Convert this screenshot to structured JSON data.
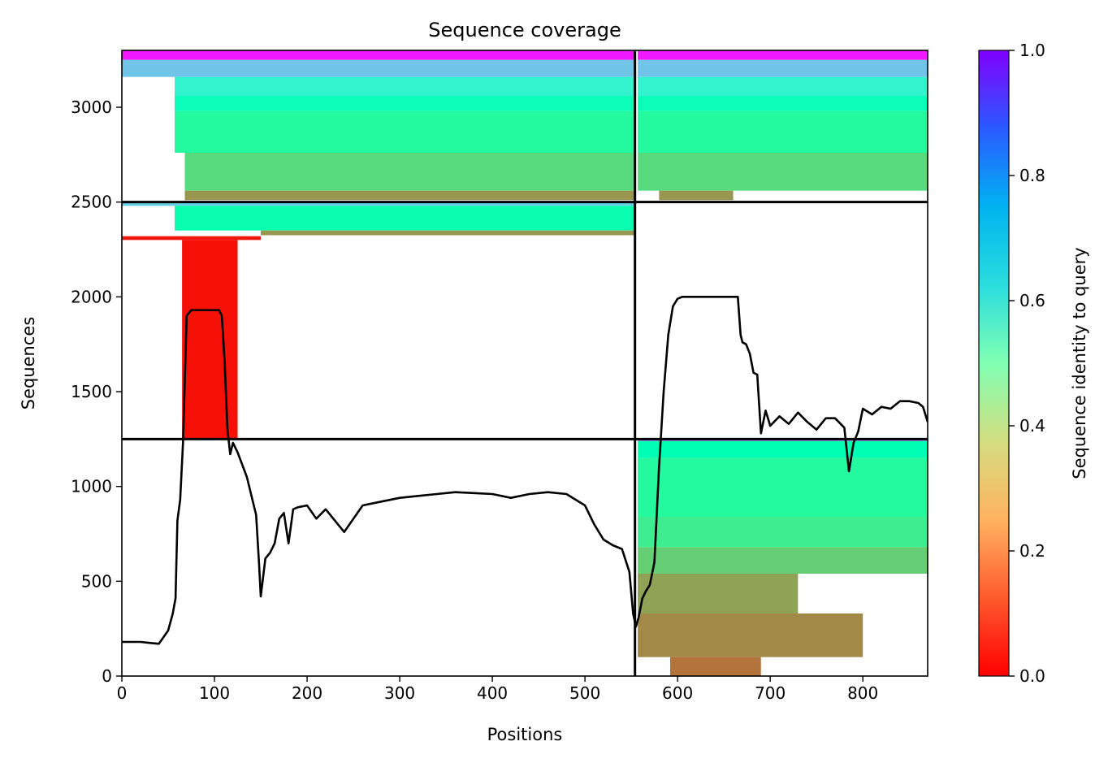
{
  "chart_data": {
    "type": "heatmap",
    "title": "Sequence coverage",
    "xlabel": "Positions",
    "ylabel": "Sequences",
    "colorbar_label": "Sequence identity to query",
    "colormap": "rainbow_r",
    "xlim": [
      0,
      870
    ],
    "ylim": [
      0,
      3300
    ],
    "x_ticks": [
      0,
      100,
      200,
      300,
      400,
      500,
      600,
      700,
      800
    ],
    "y_ticks": [
      0,
      500,
      1000,
      1500,
      2000,
      2500,
      3000
    ],
    "colorbar_ticks": [
      "0.0",
      "0.2",
      "0.4",
      "0.6",
      "0.8",
      "1.0"
    ],
    "chain_breaks_x": [
      554
    ],
    "chain_breaks_y": [
      1250,
      2500
    ],
    "coverage_bands": [
      {
        "x0": 0,
        "x1": 554,
        "y0": 3250,
        "y1": 3300,
        "identity": 0.97
      },
      {
        "x0": 0,
        "x1": 554,
        "y0": 3160,
        "y1": 3250,
        "identity": 0.72
      },
      {
        "x0": 57,
        "x1": 554,
        "y0": 3060,
        "y1": 3160,
        "identity": 0.6
      },
      {
        "x0": 57,
        "x1": 554,
        "y0": 2980,
        "y1": 3060,
        "identity": 0.52
      },
      {
        "x0": 57,
        "x1": 554,
        "y0": 2760,
        "y1": 2980,
        "identity": 0.43
      },
      {
        "x0": 68,
        "x1": 554,
        "y0": 2560,
        "y1": 2760,
        "identity": 0.33
      },
      {
        "x0": 68,
        "x1": 554,
        "y0": 2510,
        "y1": 2560,
        "identity": 0.2
      },
      {
        "x0": 557,
        "x1": 870,
        "y0": 3250,
        "y1": 3300,
        "identity": 0.97
      },
      {
        "x0": 557,
        "x1": 870,
        "y0": 3160,
        "y1": 3250,
        "identity": 0.72
      },
      {
        "x0": 557,
        "x1": 870,
        "y0": 3060,
        "y1": 3160,
        "identity": 0.6
      },
      {
        "x0": 557,
        "x1": 870,
        "y0": 2980,
        "y1": 3060,
        "identity": 0.52
      },
      {
        "x0": 557,
        "x1": 870,
        "y0": 2760,
        "y1": 2980,
        "identity": 0.43
      },
      {
        "x0": 557,
        "x1": 870,
        "y0": 2560,
        "y1": 2760,
        "identity": 0.33
      },
      {
        "x0": 580,
        "x1": 660,
        "y0": 2510,
        "y1": 2560,
        "identity": 0.2
      },
      {
        "x0": 0,
        "x1": 554,
        "y0": 2480,
        "y1": 2500,
        "identity": 0.7
      },
      {
        "x0": 57,
        "x1": 554,
        "y0": 2350,
        "y1": 2480,
        "identity": 0.48
      },
      {
        "x0": 150,
        "x1": 554,
        "y0": 2325,
        "y1": 2350,
        "identity": 0.2
      },
      {
        "x0": 0,
        "x1": 150,
        "y0": 2300,
        "y1": 2320,
        "identity": 0.03
      },
      {
        "x0": 65,
        "x1": 125,
        "y0": 1255,
        "y1": 2300,
        "identity": 0.02
      },
      {
        "x0": 557,
        "x1": 870,
        "y0": 1240,
        "y1": 1250,
        "identity": 0.9
      },
      {
        "x0": 557,
        "x1": 870,
        "y0": 1150,
        "y1": 1240,
        "identity": 0.5
      },
      {
        "x0": 557,
        "x1": 870,
        "y0": 840,
        "y1": 1150,
        "identity": 0.43
      },
      {
        "x0": 557,
        "x1": 870,
        "y0": 680,
        "y1": 840,
        "identity": 0.38
      },
      {
        "x0": 557,
        "x1": 870,
        "y0": 540,
        "y1": 680,
        "identity": 0.3
      },
      {
        "x0": 557,
        "x1": 730,
        "y0": 330,
        "y1": 540,
        "identity": 0.22
      },
      {
        "x0": 557,
        "x1": 800,
        "y0": 100,
        "y1": 330,
        "identity": 0.18
      },
      {
        "x0": 592,
        "x1": 690,
        "y0": 0,
        "y1": 100,
        "identity": 0.15
      }
    ],
    "coverage_line": {
      "x": [
        0,
        20,
        30,
        40,
        50,
        55,
        58,
        60,
        63,
        66,
        70,
        75,
        90,
        105,
        108,
        111,
        114,
        117,
        120,
        125,
        135,
        140,
        145,
        148,
        150,
        155,
        160,
        165,
        170,
        175,
        180,
        185,
        190,
        200,
        210,
        220,
        240,
        260,
        280,
        300,
        320,
        340,
        360,
        380,
        400,
        420,
        440,
        460,
        480,
        500,
        510,
        520,
        530,
        540,
        548,
        552,
        555,
        558,
        562,
        566,
        570,
        575,
        580,
        585,
        590,
        595,
        600,
        605,
        610,
        620,
        640,
        660,
        665,
        668,
        670,
        674,
        678,
        682,
        686,
        690,
        695,
        700,
        710,
        720,
        730,
        740,
        750,
        760,
        770,
        780,
        785,
        790,
        795,
        800,
        810,
        820,
        830,
        840,
        850,
        860,
        865,
        870
      ],
      "y": [
        180,
        180,
        175,
        170,
        240,
        330,
        410,
        820,
        930,
        1230,
        1900,
        1930,
        1930,
        1930,
        1900,
        1650,
        1300,
        1170,
        1230,
        1180,
        1050,
        950,
        850,
        600,
        420,
        620,
        650,
        700,
        830,
        860,
        700,
        880,
        890,
        900,
        830,
        880,
        760,
        900,
        920,
        940,
        950,
        960,
        970,
        965,
        960,
        940,
        960,
        970,
        960,
        900,
        800,
        720,
        690,
        670,
        550,
        330,
        260,
        310,
        410,
        450,
        480,
        600,
        1100,
        1500,
        1800,
        1950,
        1990,
        2000,
        2000,
        2000,
        2000,
        2000,
        2000,
        1800,
        1760,
        1750,
        1700,
        1600,
        1590,
        1280,
        1400,
        1320,
        1370,
        1330,
        1390,
        1340,
        1300,
        1360,
        1360,
        1310,
        1080,
        1230,
        1290,
        1410,
        1380,
        1420,
        1410,
        1450,
        1450,
        1440,
        1420,
        1340
      ]
    }
  }
}
